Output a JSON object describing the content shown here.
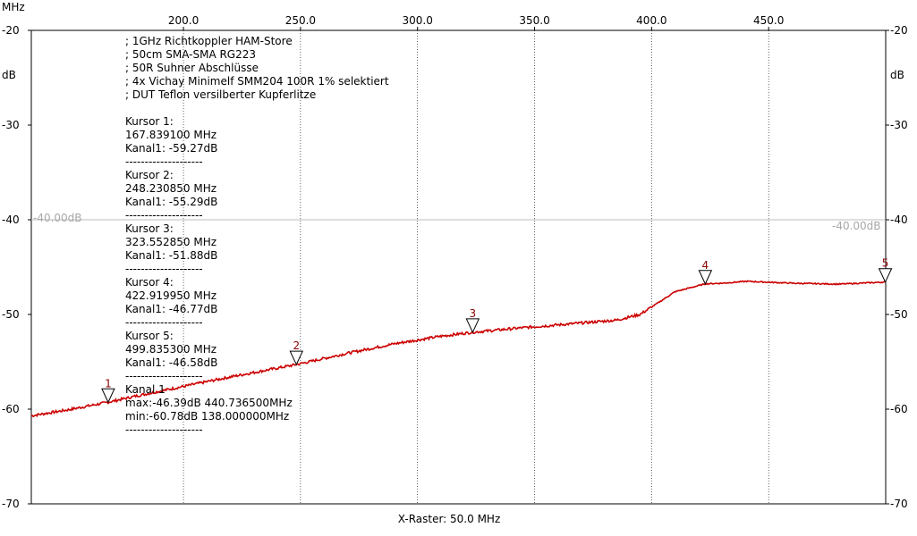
{
  "chart_data": {
    "type": "line",
    "x_unit": "MHz",
    "y_unit": "dB",
    "xlim": [
      135,
      500
    ],
    "ylim": [
      -70,
      -20
    ],
    "x_ticks": [
      200,
      250,
      300,
      350,
      400,
      450
    ],
    "x_tick_labels": [
      "200.0",
      "250.0",
      "300.0",
      "350.0",
      "400.0",
      "450.0"
    ],
    "y_ticks": [
      -20,
      -30,
      -40,
      -50,
      -60,
      -70
    ],
    "y_tick_labels": [
      "-20",
      "-30",
      "-40",
      "-50",
      "-60",
      "-70"
    ],
    "grid": "vertical",
    "xlabel": "X-Raster: 50.0 MHz",
    "reference_line": {
      "value": -40,
      "label": "-40.00dB"
    },
    "trace_color": "#cc0000",
    "marker_color": "#8b0000",
    "series": [
      {
        "x": [
          135,
          150,
          167.84,
          180,
          200,
          220,
          248.23,
          270,
          290,
          310,
          323.55,
          345,
          370,
          385,
          395,
          402,
          410,
          422.92,
          430,
          440.74,
          460,
          480,
          499.84
        ],
        "values": [
          -60.7,
          -60.1,
          -59.27,
          -58.6,
          -57.6,
          -56.6,
          -55.29,
          -54.1,
          -53.1,
          -52.3,
          -51.88,
          -51.4,
          -50.9,
          -50.6,
          -50.0,
          -48.9,
          -47.6,
          -46.77,
          -46.7,
          -46.5,
          -46.7,
          -46.8,
          -46.58
        ]
      }
    ],
    "markers": [
      {
        "label": "1",
        "x": 167.8391,
        "y": -59.27
      },
      {
        "label": "2",
        "x": 248.23085,
        "y": -55.29
      },
      {
        "label": "3",
        "x": 323.55285,
        "y": -51.88
      },
      {
        "label": "4",
        "x": 422.91995,
        "y": -46.77
      },
      {
        "label": "5",
        "x": 499.8353,
        "y": -46.58
      }
    ]
  },
  "axis_units": {
    "x_top_left": "MHz",
    "y_left": "dB",
    "y_right": "dB"
  },
  "notes": [
    "; 1GHz Richtkoppler HAM-Store",
    "; 50cm SMA-SMA RG223",
    "; 50R Suhner Abschlüsse",
    "; 4x Vichay Minimelf SMM204 100R 1% selektiert",
    "; DUT Teflon versilberter Kupferlitze",
    "",
    "Kursor 1:",
    "167.839100 MHz",
    "Kanal1: -59.27dB",
    "--------------------",
    "Kursor 2:",
    "248.230850 MHz",
    "Kanal1: -55.29dB",
    "--------------------",
    "Kursor 3:",
    "323.552850 MHz",
    "Kanal1: -51.88dB",
    "--------------------",
    "Kursor 4:",
    "422.919950 MHz",
    "Kanal1: -46.77dB",
    "--------------------",
    "Kursor 5:",
    "499.835300 MHz",
    "Kanal1: -46.58dB",
    "--------------------",
    "Kanal 1",
    "max:-46.39dB 440.736500MHz",
    "min:-60.78dB 138.000000MHz",
    "--------------------"
  ]
}
